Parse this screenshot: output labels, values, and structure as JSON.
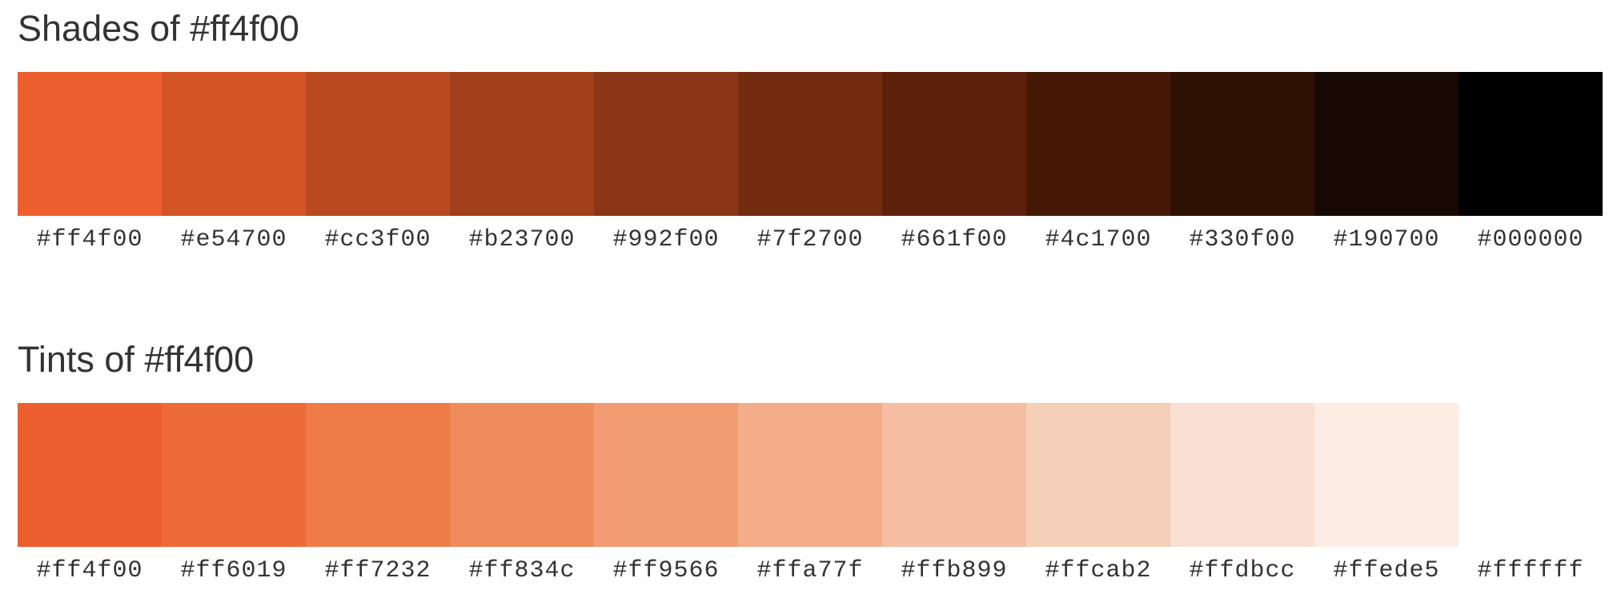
{
  "shades": {
    "title": "Shades of #ff4f00",
    "swatches": [
      {
        "label": "#ff4f00",
        "color": "#ee5f2f"
      },
      {
        "label": "#e54700",
        "color": "#d35424"
      },
      {
        "label": "#cc3f00",
        "color": "#b94a1f"
      },
      {
        "label": "#b23700",
        "color": "#a1401a"
      },
      {
        "label": "#992f00",
        "color": "#8b3616"
      },
      {
        "label": "#7f2700",
        "color": "#732c10"
      },
      {
        "label": "#661f00",
        "color": "#5d210b"
      },
      {
        "label": "#4c1700",
        "color": "#451906"
      },
      {
        "label": "#330f00",
        "color": "#2f1104"
      },
      {
        "label": "#190700",
        "color": "#170802"
      },
      {
        "label": "#000000",
        "color": "#000000"
      }
    ]
  },
  "tints": {
    "title": "Tints of #ff4f00",
    "swatches": [
      {
        "label": "#ff4f00",
        "color": "#ed5e2f"
      },
      {
        "label": "#ff6019",
        "color": "#ee6b37"
      },
      {
        "label": "#ff7232",
        "color": "#ef7b47"
      },
      {
        "label": "#ff834c",
        "color": "#f08c5b"
      },
      {
        "label": "#ff9566",
        "color": "#f19c72"
      },
      {
        "label": "#ffa77f",
        "color": "#f3ad8a"
      },
      {
        "label": "#ffb899",
        "color": "#f5bda1"
      },
      {
        "label": "#ffcab2",
        "color": "#f6cfb9"
      },
      {
        "label": "#ffdbcc",
        "color": "#f9e0d2"
      },
      {
        "label": "#ffede5",
        "color": "#fcece3"
      },
      {
        "label": "#ffffff",
        "color": "#ffffff"
      }
    ]
  }
}
